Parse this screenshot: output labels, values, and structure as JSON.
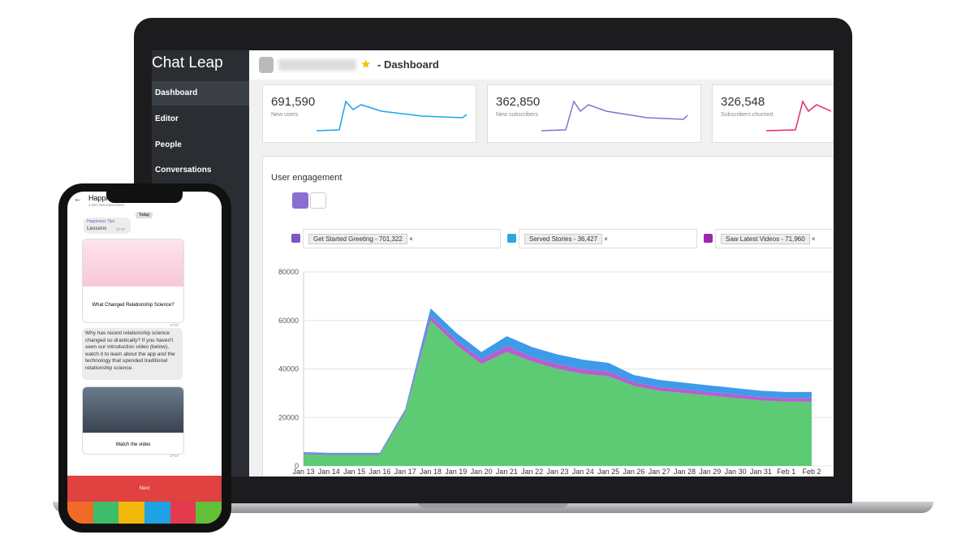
{
  "app": {
    "logo": "Chat Leap",
    "page_title": "- Dashboard"
  },
  "sidebar": [
    "Dashboard",
    "Editor",
    "People",
    "Conversations"
  ],
  "stats": [
    {
      "value": "691,590",
      "label": "New users"
    },
    {
      "value": "362,850",
      "label": "New subscribers"
    },
    {
      "value": "326,548",
      "label": "Subscribers churned"
    }
  ],
  "engagement": {
    "title": "User engagement",
    "chart_data": {
      "type": "area",
      "stacked": true,
      "categories": [
        "Jan 13",
        "Jan 14",
        "Jan 15",
        "Jan 16",
        "Jan 17",
        "Jan 18",
        "Jan 19",
        "Jan 20",
        "Jan 21",
        "Jan 22",
        "Jan 23",
        "Jan 24",
        "Jan 25",
        "Jan 26",
        "Jan 27",
        "Jan 28",
        "Jan 29",
        "Jan 30",
        "Jan 31",
        "Feb 1",
        "Feb 2"
      ],
      "series": [
        {
          "name": "Get Started Greeting - 701,322",
          "color": "#5ccb73",
          "values": [
            4800,
            4500,
            4500,
            4500,
            22000,
            60000,
            50000,
            42000,
            47000,
            43000,
            40000,
            38000,
            37000,
            33000,
            31000,
            30000,
            29000,
            28000,
            27000,
            26500,
            26500
          ]
        },
        {
          "name": "Saw Latest Videos - 71,960",
          "color": "#b65fd0",
          "values": [
            400,
            400,
            400,
            400,
            600,
            2000,
            2000,
            2000,
            2500,
            2000,
            2000,
            2000,
            2000,
            1500,
            1500,
            1500,
            1500,
            1500,
            1500,
            1500,
            1500
          ]
        },
        {
          "name": "Served Stories - 36,427",
          "color": "#3d9be9",
          "values": [
            500,
            500,
            500,
            500,
            800,
            3000,
            3000,
            3000,
            4000,
            4000,
            4000,
            3800,
            3500,
            3000,
            3000,
            2800,
            2700,
            2600,
            2500,
            2500,
            2500
          ]
        }
      ],
      "ylim": [
        0,
        80000
      ],
      "yticks": [
        0,
        20000,
        40000,
        60000,
        80000
      ],
      "grid": true
    }
  },
  "phone": {
    "channel": "Happi",
    "subscribers": "3,387,048 subscribers",
    "day": "Today",
    "sender": "Happiness Tips",
    "first_message": "Lessons",
    "time": "17:57",
    "card1": "What Changed Relationship Science?",
    "message": "Why has recent relationship science changed so drastically? If you haven't seen our introduction video (below), watch it to learn about the app and the technology that upended traditional relationship science.",
    "card2": "Watch the video",
    "button": "Next"
  }
}
